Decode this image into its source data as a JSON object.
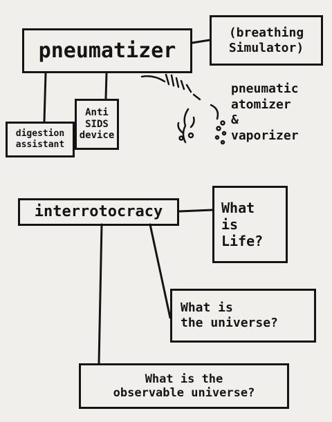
{
  "nodes": {
    "pneumatizer": "pneumatizer",
    "breathing_simulator": "(breathing\nSimulator)",
    "digestion_assistant": "digestion\nassistant",
    "anti_sids_device": "Anti\nSIDS\ndevice",
    "pneumatic_atomizer_vaporizer": "pneumatic\natomizer\n&\nvaporizer",
    "interrotocracy": "interrotocracy",
    "what_is_life": "What\nis\nLife?",
    "what_is_the_universe": "What is\nthe universe?",
    "what_is_the_observable_universe": "What is the\nobservable universe?"
  }
}
